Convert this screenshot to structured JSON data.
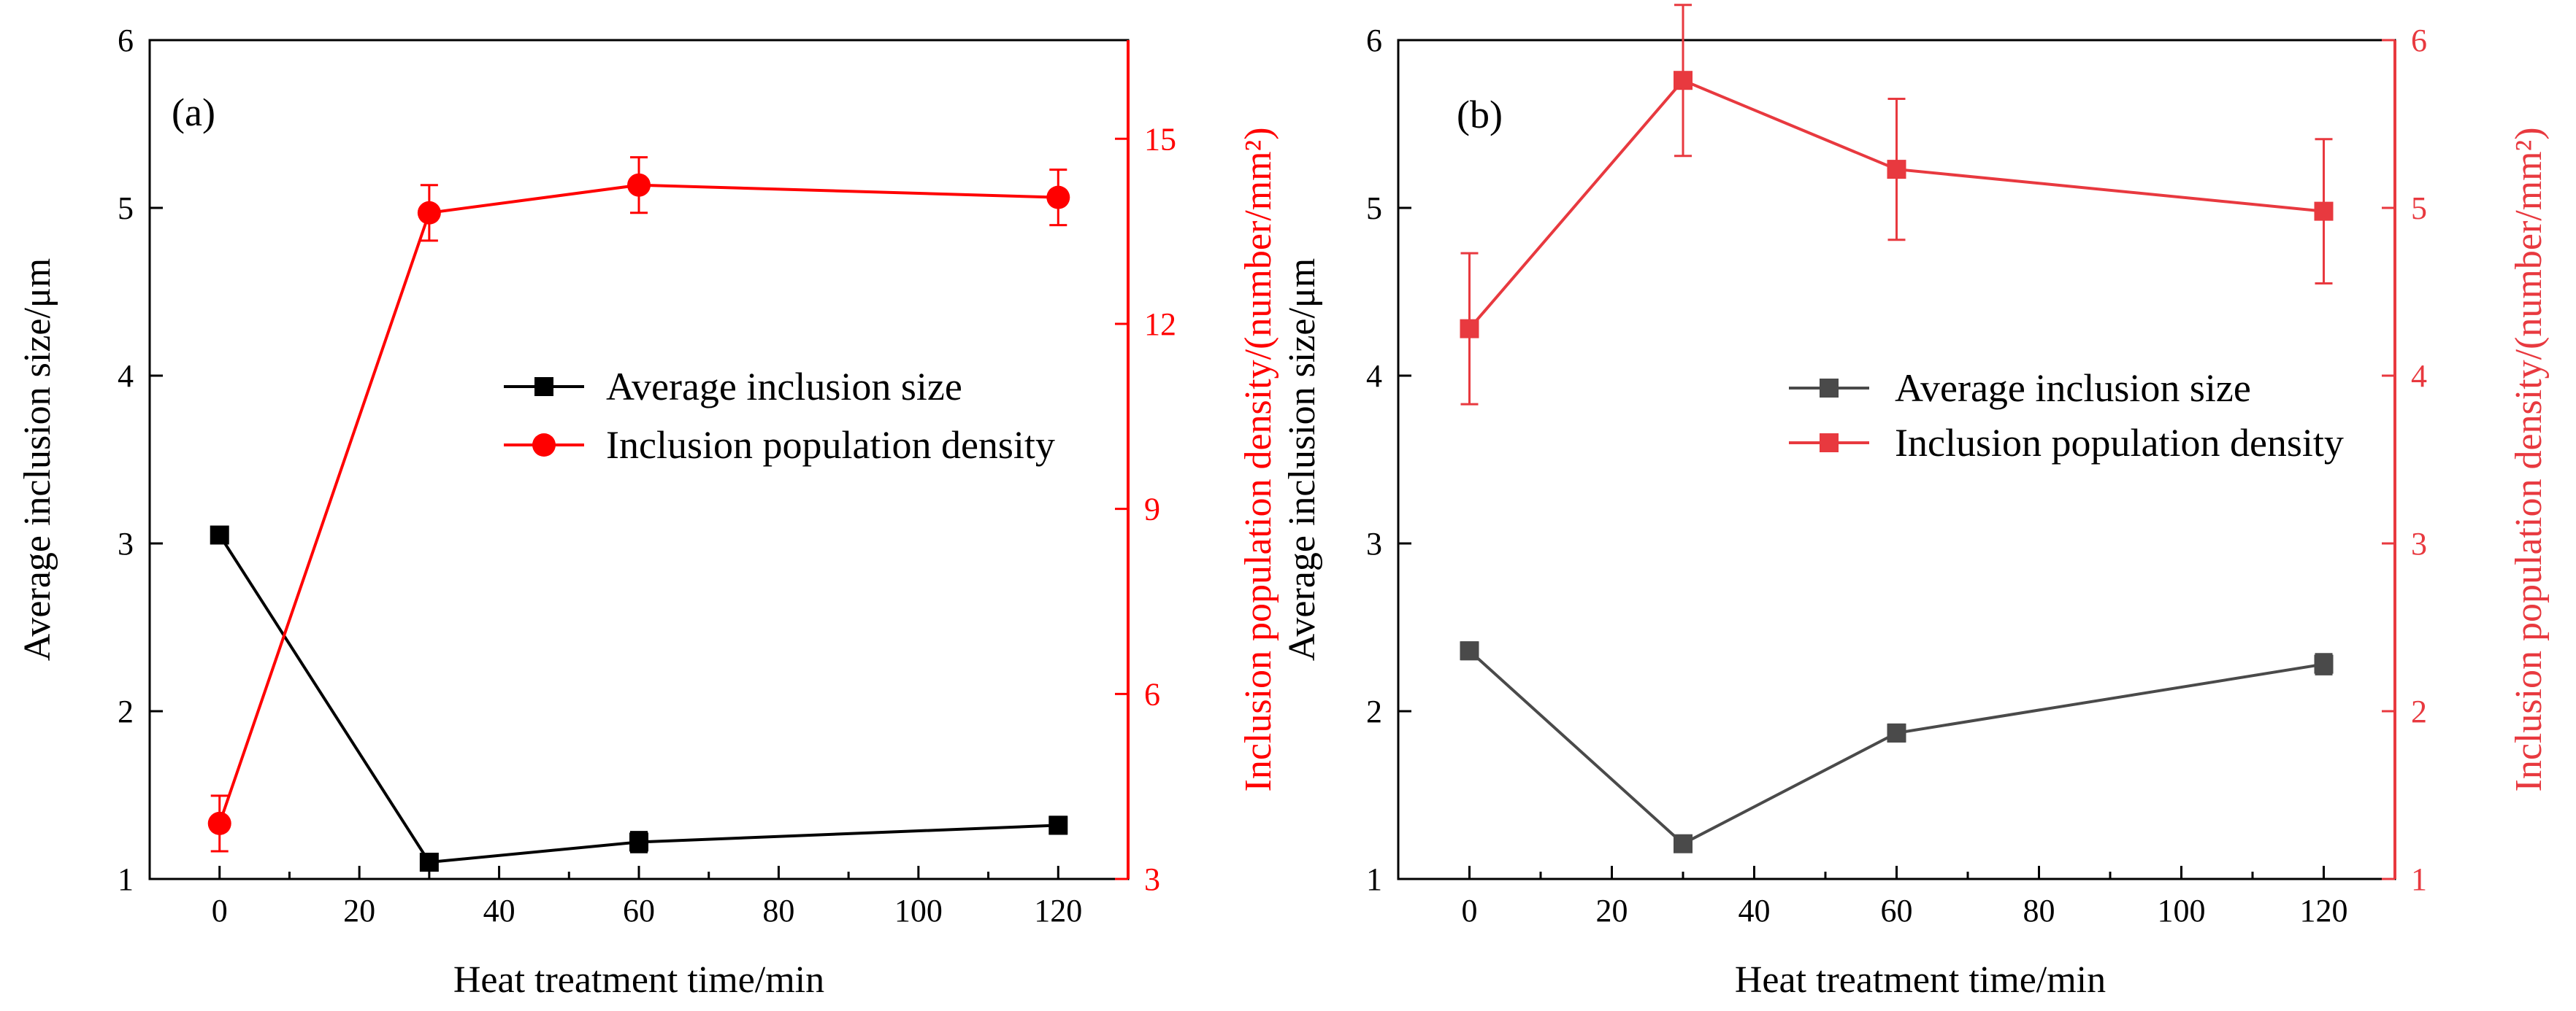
{
  "figure": {
    "panels": [
      "(a)",
      "(b)"
    ],
    "colors": {
      "a_size": "#000000",
      "a_density": "#ff0000",
      "b_size": "#4a4a4a",
      "b_density": "#e8393f"
    }
  },
  "chart_data": [
    {
      "type": "line",
      "panel_label": "(a)",
      "xlabel": "Heat treatment time/min",
      "ylabel": "Average inclusion size/μm",
      "y2label": "Inclusion population density/(number/mm²)",
      "xlim": [
        -10,
        130
      ],
      "ylim": [
        1,
        6
      ],
      "y2lim": [
        3,
        16.6
      ],
      "xticks": [
        0,
        20,
        40,
        60,
        80,
        100,
        120
      ],
      "yticks": [
        1,
        2,
        3,
        4,
        5,
        6
      ],
      "y2ticks": [
        3,
        6,
        9,
        12,
        15
      ],
      "legend_position": "center-right",
      "series": [
        {
          "name": "Average inclusion size",
          "axis": "left",
          "marker": "square",
          "x": [
            0,
            30,
            60,
            120
          ],
          "values": [
            3.05,
            1.1,
            1.22,
            1.32
          ],
          "errors": [
            0.05,
            0.05,
            0.06,
            0.05
          ]
        },
        {
          "name": "Inclusion population density",
          "axis": "right",
          "marker": "circle",
          "x": [
            0,
            30,
            60,
            120
          ],
          "values": [
            3.9,
            13.8,
            14.25,
            14.05
          ],
          "errors": [
            0.45,
            0.45,
            0.45,
            0.45
          ]
        }
      ]
    },
    {
      "type": "line",
      "panel_label": "(b)",
      "xlabel": "Heat treatment time/min",
      "ylabel": "Average inclusion size/μm",
      "y2label": "Inclusion population density/(number/mm²)",
      "xlim": [
        -10,
        130
      ],
      "ylim": [
        1,
        6
      ],
      "y2lim": [
        1,
        6
      ],
      "xticks": [
        0,
        20,
        40,
        60,
        80,
        100,
        120
      ],
      "yticks": [
        1,
        2,
        3,
        4,
        5,
        6
      ],
      "y2ticks": [
        1,
        2,
        3,
        4,
        5,
        6
      ],
      "legend_position": "center-right",
      "series": [
        {
          "name": "Average inclusion size",
          "axis": "left",
          "marker": "square",
          "x": [
            0,
            30,
            60,
            120
          ],
          "values": [
            2.36,
            1.21,
            1.87,
            2.28
          ],
          "errors": [
            0.05,
            0.04,
            0.05,
            0.06
          ]
        },
        {
          "name": "Inclusion population density",
          "axis": "right",
          "marker": "square",
          "x": [
            0,
            30,
            60,
            120
          ],
          "values": [
            4.28,
            5.76,
            5.23,
            4.98
          ],
          "errors": [
            0.45,
            0.45,
            0.42,
            0.43
          ]
        }
      ]
    }
  ]
}
